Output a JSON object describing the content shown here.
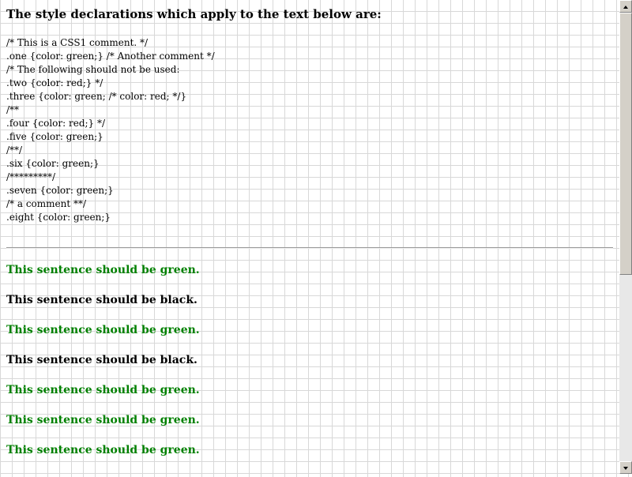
{
  "heading": "The style declarations which apply to the text below are:",
  "code_lines": [
    "/* This is a CSS1 comment. */",
    ".one {color: green;} /* Another comment */",
    "/* The following should not be used:",
    ".two {color: red;} */",
    ".three {color: green; /* color: red; */}",
    "/**",
    ".four {color: red;} */",
    ".five {color: green;}",
    "/**/",
    ".six {color: green;}",
    "/*********/",
    ".seven {color: green;}",
    "/* a comment **/",
    ".eight {color: green;}"
  ],
  "sentences": [
    {
      "text": "This sentence should be green.",
      "color": "green"
    },
    {
      "text": "This sentence should be black.",
      "color": "black"
    },
    {
      "text": "This sentence should be green.",
      "color": "green"
    },
    {
      "text": "This sentence should be black.",
      "color": "black"
    },
    {
      "text": "This sentence should be green.",
      "color": "green"
    },
    {
      "text": "This sentence should be green.",
      "color": "green"
    },
    {
      "text": "This sentence should be green.",
      "color": "green"
    }
  ]
}
